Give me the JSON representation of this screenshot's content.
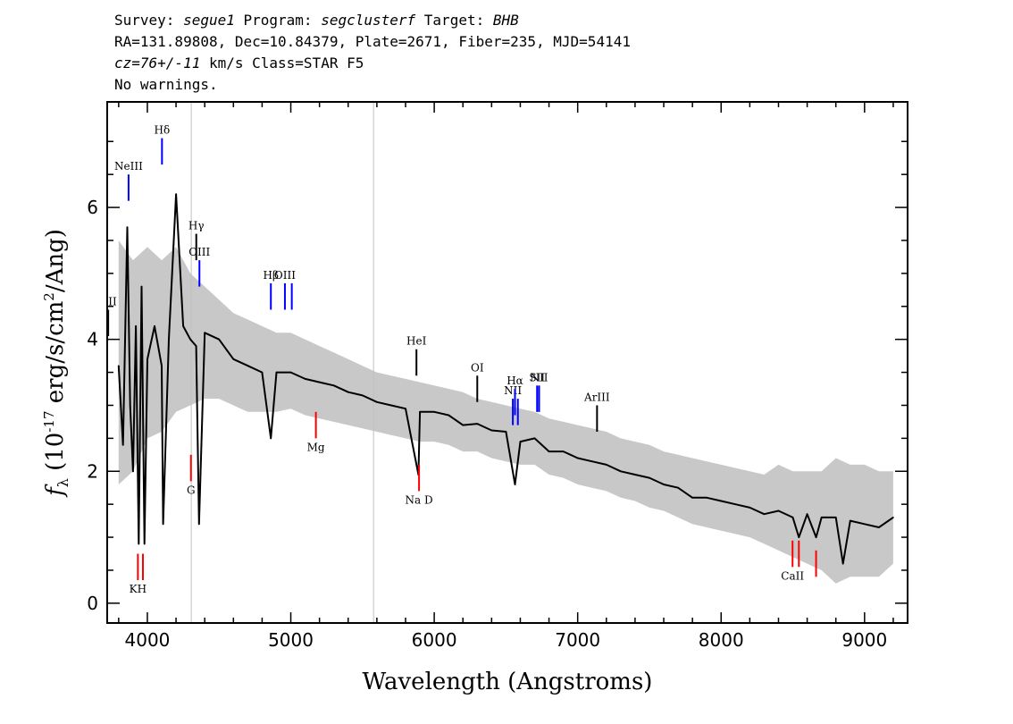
{
  "header": {
    "line1": {
      "p1": "Survey: ",
      "survey": "segue1",
      "p2": " Program: ",
      "program": "segclusterf",
      "p3": " Target: ",
      "target": "BHB"
    },
    "line2": "RA=131.89808, Dec=10.84379, Plate=2671, Fiber=235, MJD=54141",
    "line3": {
      "cz": "cz=76+/-11",
      "rest": " km/s Class=STAR F5"
    },
    "line4": "No warnings."
  },
  "chart_data": {
    "type": "line",
    "xlabel": "Wavelength (Angstroms)",
    "ylabel": "f_λ (10^-17 erg/s/cm^2/Ang)",
    "xlim": [
      3720,
      9300
    ],
    "ylim": [
      -0.3,
      7.6
    ],
    "xticks": [
      4000,
      5000,
      6000,
      7000,
      8000,
      9000
    ],
    "yticks": [
      0,
      2,
      4,
      6
    ],
    "grid": false,
    "series": [
      {
        "color": "#000000",
        "x": [
          3800,
          3830,
          3860,
          3880,
          3900,
          3920,
          3940,
          3960,
          3980,
          4000,
          4050,
          4100,
          4110,
          4150,
          4200,
          4250,
          4300,
          4340,
          4360,
          4400,
          4500,
          4600,
          4700,
          4800,
          4861,
          4900,
          5000,
          5100,
          5200,
          5300,
          5400,
          5500,
          5600,
          5700,
          5800,
          5890,
          5900,
          6000,
          6100,
          6200,
          6300,
          6400,
          6500,
          6563,
          6600,
          6700,
          6800,
          6900,
          7000,
          7100,
          7200,
          7300,
          7400,
          7500,
          7600,
          7700,
          7800,
          7900,
          8000,
          8100,
          8200,
          8300,
          8400,
          8500,
          8542,
          8600,
          8662,
          8700,
          8800,
          8850,
          8900,
          9000,
          9100,
          9200
        ],
        "y": [
          3.6,
          2.4,
          5.7,
          3.0,
          2.0,
          4.2,
          0.9,
          4.8,
          0.9,
          3.7,
          4.2,
          3.6,
          1.2,
          4.0,
          6.2,
          4.2,
          4.0,
          3.9,
          1.2,
          4.1,
          4.0,
          3.7,
          3.6,
          3.5,
          2.5,
          3.5,
          3.5,
          3.4,
          3.35,
          3.3,
          3.2,
          3.15,
          3.05,
          3.0,
          2.95,
          1.95,
          2.9,
          2.9,
          2.85,
          2.7,
          2.72,
          2.62,
          2.6,
          1.8,
          2.45,
          2.5,
          2.3,
          2.3,
          2.2,
          2.15,
          2.1,
          2.0,
          1.95,
          1.9,
          1.8,
          1.75,
          1.6,
          1.6,
          1.55,
          1.5,
          1.45,
          1.35,
          1.4,
          1.3,
          1.0,
          1.35,
          1.0,
          1.3,
          1.3,
          0.6,
          1.25,
          1.2,
          1.15,
          1.3
        ]
      }
    ],
    "uncertainty": {
      "color": "#c8c8c8",
      "x": [
        3800,
        3900,
        4000,
        4100,
        4200,
        4300,
        4400,
        4500,
        4600,
        4700,
        4800,
        4900,
        5000,
        5100,
        5200,
        5300,
        5400,
        5500,
        5600,
        5700,
        5800,
        5900,
        6000,
        6100,
        6200,
        6300,
        6400,
        6500,
        6600,
        6700,
        6800,
        6900,
        7000,
        7100,
        7200,
        7300,
        7400,
        7500,
        7600,
        7700,
        7800,
        7900,
        8000,
        8100,
        8200,
        8300,
        8400,
        8500,
        8600,
        8700,
        8800,
        8900,
        9000,
        9100,
        9200
      ],
      "upper": [
        5.5,
        5.2,
        5.4,
        5.2,
        5.4,
        5.0,
        4.8,
        4.6,
        4.4,
        4.3,
        4.2,
        4.1,
        4.1,
        4.0,
        3.9,
        3.8,
        3.7,
        3.6,
        3.5,
        3.45,
        3.4,
        3.35,
        3.3,
        3.25,
        3.2,
        3.1,
        3.05,
        3.0,
        2.95,
        2.9,
        2.8,
        2.75,
        2.7,
        2.65,
        2.6,
        2.5,
        2.45,
        2.4,
        2.3,
        2.25,
        2.2,
        2.15,
        2.1,
        2.05,
        2.0,
        1.95,
        2.1,
        2.0,
        2.0,
        2.0,
        2.2,
        2.1,
        2.1,
        2.0,
        2.0
      ],
      "lower": [
        1.8,
        2.0,
        2.5,
        2.6,
        2.9,
        3.0,
        3.1,
        3.1,
        3.0,
        2.9,
        2.9,
        2.9,
        2.95,
        2.85,
        2.8,
        2.75,
        2.7,
        2.65,
        2.6,
        2.55,
        2.5,
        2.45,
        2.45,
        2.4,
        2.3,
        2.3,
        2.2,
        2.15,
        2.1,
        2.1,
        1.95,
        1.9,
        1.8,
        1.75,
        1.7,
        1.6,
        1.55,
        1.45,
        1.4,
        1.3,
        1.2,
        1.15,
        1.1,
        1.05,
        1.0,
        0.9,
        0.8,
        0.7,
        0.6,
        0.5,
        0.3,
        0.4,
        0.4,
        0.4,
        0.6
      ]
    },
    "vertical_gray_lines": [
      4306,
      5577
    ],
    "emission_lines": [
      {
        "label": "OII",
        "x": 3727,
        "y1": 4.05,
        "y2": 4.45,
        "color": "#000000"
      },
      {
        "label": "NeIII",
        "x": 3869,
        "y1": 6.1,
        "y2": 6.5,
        "color": "#0000ff"
      },
      {
        "label": "Hδ",
        "x": 4102,
        "y1": 6.65,
        "y2": 7.05,
        "color": "#0000ff"
      },
      {
        "label": "Hγ",
        "x": 4341,
        "y1": 5.2,
        "y2": 5.6,
        "color": "#000000"
      },
      {
        "label": "OIII",
        "x": 4363,
        "y1": 4.8,
        "y2": 5.2,
        "color": "#0000ff"
      },
      {
        "label": "Hβ",
        "x": 4861,
        "y1": 4.45,
        "y2": 4.85,
        "color": "#0000ff"
      },
      {
        "label": "OIII",
        "x": 4959,
        "y1": 4.45,
        "y2": 4.85,
        "color": "#0000ff"
      },
      {
        "label": "",
        "x": 5007,
        "y1": 4.45,
        "y2": 4.85,
        "color": "#0000ff"
      },
      {
        "label": "HeI",
        "x": 5876,
        "y1": 3.45,
        "y2": 3.85,
        "color": "#000000"
      },
      {
        "label": "OI",
        "x": 6300,
        "y1": 3.05,
        "y2": 3.45,
        "color": "#000000"
      },
      {
        "label": "NII",
        "x": 6548,
        "y1": 2.7,
        "y2": 3.1,
        "color": "#0000ff"
      },
      {
        "label": "Hα",
        "x": 6563,
        "y1": 2.85,
        "y2": 3.25,
        "color": "#0000ff"
      },
      {
        "label": "",
        "x": 6583,
        "y1": 2.7,
        "y2": 3.1,
        "color": "#0000ff"
      },
      {
        "label": "SII",
        "x": 6717,
        "y1": 2.9,
        "y2": 3.3,
        "color": "#0000ff"
      },
      {
        "label": "NII",
        "x": 6731,
        "y1": 2.9,
        "y2": 3.3,
        "color": "#0000ff"
      },
      {
        "label": "ArIII",
        "x": 7135,
        "y1": 2.6,
        "y2": 3.0,
        "color": "#000000"
      }
    ],
    "absorption_lines": [
      {
        "label": "KH",
        "x": 3934,
        "y1": 0.35,
        "y2": 0.75,
        "color": "#ff0000"
      },
      {
        "label": "",
        "x": 3969,
        "y1": 0.35,
        "y2": 0.75,
        "color": "#ff0000"
      },
      {
        "label": "G",
        "x": 4304,
        "y1": 1.85,
        "y2": 2.25,
        "color": "#ff0000"
      },
      {
        "label": "Mg",
        "x": 5175,
        "y1": 2.5,
        "y2": 2.9,
        "color": "#ff0000"
      },
      {
        "label": "Na D",
        "x": 5894,
        "y1": 1.7,
        "y2": 2.1,
        "color": "#ff0000"
      },
      {
        "label": "CaII",
        "x": 8498,
        "y1": 0.55,
        "y2": 0.95,
        "color": "#ff0000"
      },
      {
        "label": "",
        "x": 8542,
        "y1": 0.55,
        "y2": 0.95,
        "color": "#ff0000"
      },
      {
        "label": "",
        "x": 8662,
        "y1": 0.4,
        "y2": 0.8,
        "color": "#ff0000"
      }
    ]
  }
}
